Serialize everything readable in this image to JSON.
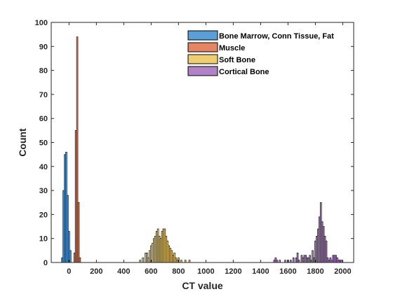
{
  "chart_data": {
    "type": "bar",
    "subtype": "histogram",
    "title": "",
    "xlabel": "CT value",
    "ylabel": "Count",
    "xlim": [
      -130,
      2080
    ],
    "ylim": [
      0,
      100
    ],
    "xticks": [
      0,
      200,
      400,
      600,
      800,
      1000,
      1200,
      1400,
      1600,
      1800,
      2000
    ],
    "yticks": [
      0,
      10,
      20,
      30,
      40,
      50,
      60,
      70,
      80,
      90,
      100
    ],
    "grid": false,
    "legend_position": "top-right",
    "bin_width": 10,
    "series": [
      {
        "name": "Bone Marrow, Conn Tissue, Fat",
        "color": "#5a9fd6",
        "x": [
          -50,
          -40,
          -30,
          -20,
          -10,
          0,
          10
        ],
        "values": [
          2,
          30,
          45,
          46,
          28,
          13,
          5
        ]
      },
      {
        "name": "Muscle",
        "color": "#e58563",
        "x": [
          40,
          50,
          60,
          70,
          80
        ],
        "values": [
          4,
          55,
          94,
          25,
          2
        ]
      },
      {
        "name": "Soft Bone",
        "color": "#efce71",
        "x": [
          520,
          540,
          560,
          570,
          580,
          590,
          600,
          610,
          620,
          630,
          640,
          650,
          660,
          670,
          680,
          690,
          700,
          710,
          720,
          730,
          740,
          750,
          760,
          770,
          780,
          790,
          800,
          820,
          850,
          880
        ],
        "values": [
          1,
          2,
          4,
          4,
          2,
          5,
          7,
          8,
          10,
          11,
          13,
          14,
          11,
          10,
          13,
          14,
          14,
          11,
          9,
          7,
          6,
          5,
          3,
          4,
          2,
          1,
          2,
          1,
          1,
          1
        ]
      },
      {
        "name": "Cortical Bone",
        "color": "#b083c7",
        "x": [
          1500,
          1510,
          1520,
          1540,
          1580,
          1600,
          1620,
          1640,
          1660,
          1670,
          1680,
          1700,
          1710,
          1720,
          1730,
          1740,
          1750,
          1760,
          1770,
          1780,
          1790,
          1800,
          1810,
          1820,
          1830,
          1840,
          1850,
          1860,
          1870,
          1880,
          1890,
          1900,
          1910,
          1920,
          1930,
          1940,
          1950,
          1960,
          1970,
          1980,
          1990
        ],
        "values": [
          1,
          2,
          1,
          1,
          1,
          1,
          1,
          2,
          2,
          4,
          1,
          3,
          2,
          3,
          3,
          2,
          2,
          3,
          1,
          5,
          2,
          9,
          11,
          14,
          19,
          25,
          17,
          15,
          11,
          9,
          2,
          1,
          2,
          1,
          3,
          3,
          3,
          2,
          1,
          1,
          1
        ]
      }
    ]
  }
}
